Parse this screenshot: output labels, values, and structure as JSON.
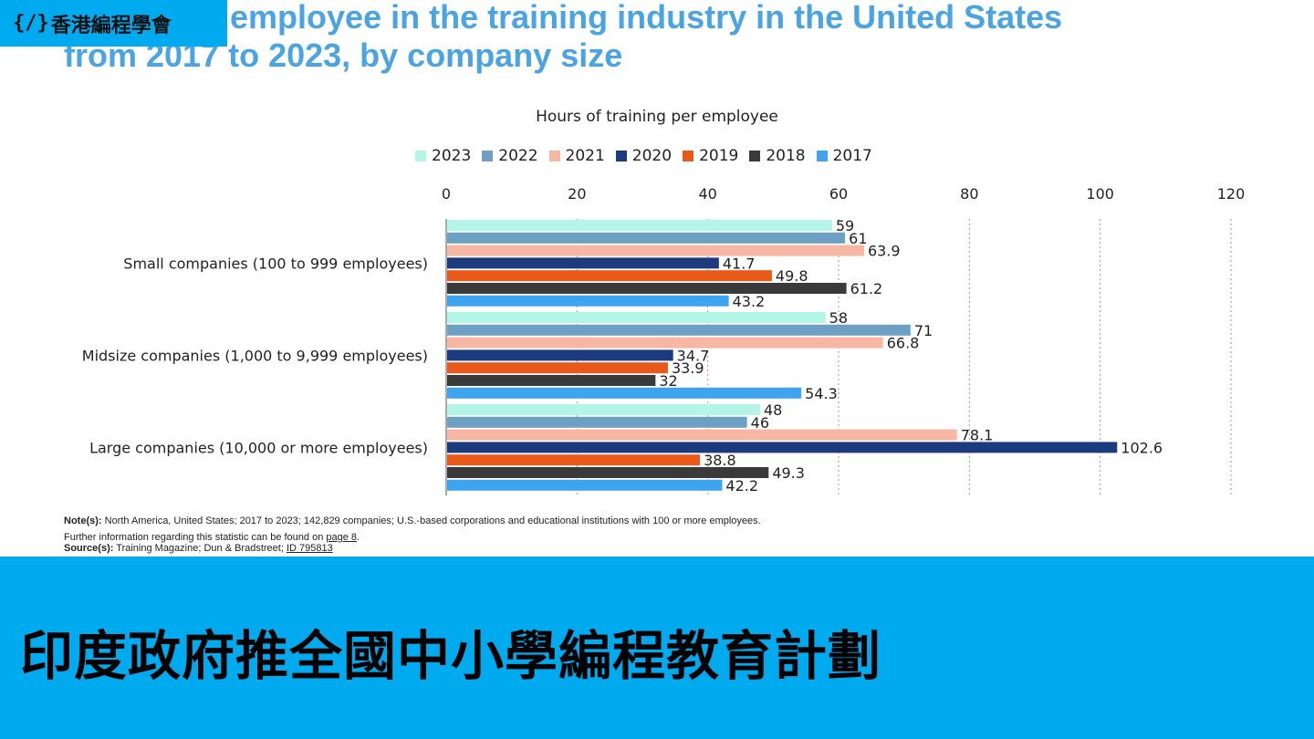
{
  "header": {
    "title_line1": "aining per employee in the training industry in the United States",
    "title_line2": "from 2017 to 2023, by company size"
  },
  "logo": {
    "icon": "{/}",
    "text": "香港編程學會"
  },
  "banner": {
    "headline": "印度政府推全國中小學編程教育計劃"
  },
  "notes": {
    "note_label": "Note(s):",
    "note_text": " North America, United States; 2017 to 2023; 142,829 companies; U.S.-based corporations and educational institutions with 100 or more employees.",
    "further_text": "Further  information regarding this statistic can be found on ",
    "further_link": "page 8",
    "further_end": ".",
    "source_label": "Source(s):",
    "source_text": " Training Magazine; Dun & Bradstreet; ",
    "source_id": "ID 795813"
  },
  "chart_data": {
    "type": "bar",
    "orientation": "horizontal",
    "title": "Hours of training per employee",
    "xlim": [
      0,
      120
    ],
    "xticks": [
      "0",
      "20",
      "40",
      "60",
      "80",
      "100",
      "120"
    ],
    "grid": true,
    "legend_position": "top",
    "categories": [
      "Small companies (100 to 999 employees)",
      "Midsize companies (1,000 to 9,999 employees)",
      "Large companies (10,000 or more employees)"
    ],
    "series": [
      {
        "name": "2023",
        "color": "#b3f5e6",
        "values": [
          59,
          58,
          48
        ]
      },
      {
        "name": "2022",
        "color": "#6ea0c4",
        "values": [
          61,
          71,
          46
        ]
      },
      {
        "name": "2021",
        "color": "#f8b7a2",
        "values": [
          63.9,
          66.8,
          78.1
        ]
      },
      {
        "name": "2020",
        "color": "#1c3b7f",
        "values": [
          41.7,
          34.7,
          102.6
        ]
      },
      {
        "name": "2019",
        "color": "#e8591a",
        "values": [
          49.8,
          33.9,
          38.8
        ]
      },
      {
        "name": "2018",
        "color": "#3a3a3a",
        "values": [
          61.2,
          32,
          49.3
        ]
      },
      {
        "name": "2017",
        "color": "#3fa4ef",
        "values": [
          43.2,
          54.3,
          42.2
        ]
      }
    ]
  }
}
